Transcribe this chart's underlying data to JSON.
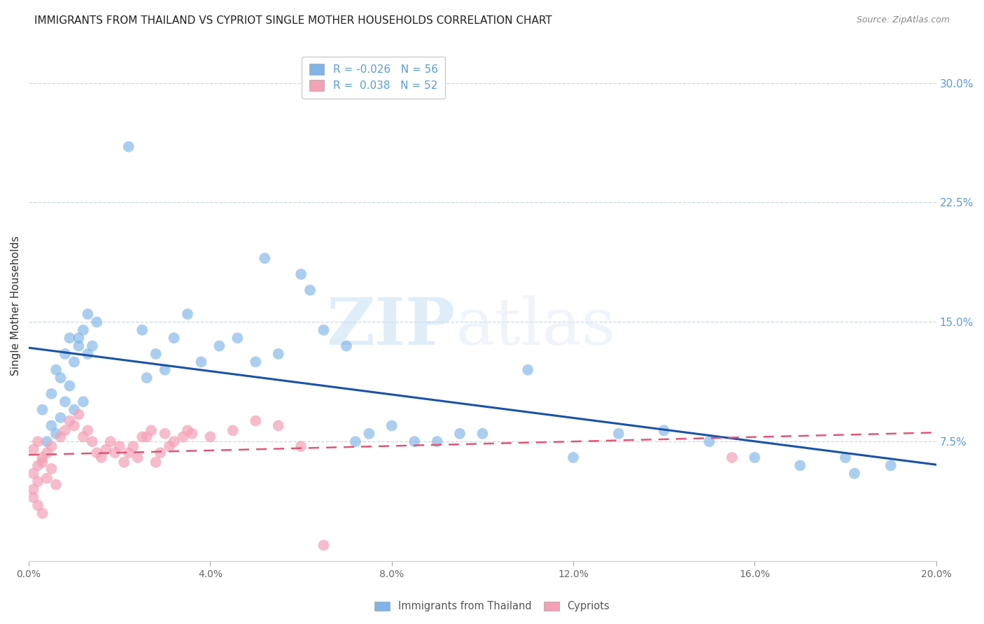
{
  "title": "IMMIGRANTS FROM THAILAND VS CYPRIOT SINGLE MOTHER HOUSEHOLDS CORRELATION CHART",
  "source": "Source: ZipAtlas.com",
  "ylabel": "Single Mother Households",
  "xlim": [
    0.0,
    0.2
  ],
  "ylim": [
    0.0,
    0.32
  ],
  "xtick_vals": [
    0.0,
    0.04,
    0.08,
    0.12,
    0.16,
    0.2
  ],
  "xtick_labels": [
    "0.0%",
    "4.0%",
    "8.0%",
    "12.0%",
    "16.0%",
    "20.0%"
  ],
  "ytick_vals": [
    0.075,
    0.15,
    0.225,
    0.3
  ],
  "ytick_labels": [
    "7.5%",
    "15.0%",
    "22.5%",
    "30.0%"
  ],
  "thailand_color": "#7eb4e8",
  "cypriot_color": "#f4a0b5",
  "trend_thailand_color": "#1a52a8",
  "trend_cypriot_color": "#e05575",
  "legend_R_thailand": "-0.026",
  "legend_N_thailand": "56",
  "legend_R_cypriot": "0.038",
  "legend_N_cypriot": "52",
  "watermark_zip": "ZIP",
  "watermark_atlas": "atlas",
  "grid_color": "#c8d8e8",
  "axis_label_color": "#5b9bd5",
  "title_color": "#222222",
  "source_color": "#888888",
  "ylabel_color": "#333333",
  "thailand_x": [
    0.003,
    0.005,
    0.006,
    0.004,
    0.007,
    0.008,
    0.006,
    0.009,
    0.005,
    0.007,
    0.01,
    0.008,
    0.011,
    0.009,
    0.012,
    0.01,
    0.013,
    0.011,
    0.014,
    0.012,
    0.015,
    0.013,
    0.022,
    0.025,
    0.028,
    0.032,
    0.035,
    0.038,
    0.042,
    0.046,
    0.03,
    0.026,
    0.05,
    0.055,
    0.06,
    0.065,
    0.07,
    0.075,
    0.08,
    0.085,
    0.09,
    0.095,
    0.1,
    0.11,
    0.12,
    0.13,
    0.14,
    0.15,
    0.16,
    0.17,
    0.18,
    0.19,
    0.052,
    0.062,
    0.072,
    0.182
  ],
  "thailand_y": [
    0.095,
    0.085,
    0.08,
    0.075,
    0.09,
    0.1,
    0.12,
    0.11,
    0.105,
    0.115,
    0.125,
    0.13,
    0.135,
    0.14,
    0.1,
    0.095,
    0.13,
    0.14,
    0.135,
    0.145,
    0.15,
    0.155,
    0.26,
    0.145,
    0.13,
    0.14,
    0.155,
    0.125,
    0.135,
    0.14,
    0.12,
    0.115,
    0.125,
    0.13,
    0.18,
    0.145,
    0.135,
    0.08,
    0.085,
    0.075,
    0.075,
    0.08,
    0.08,
    0.12,
    0.065,
    0.08,
    0.082,
    0.075,
    0.065,
    0.06,
    0.065,
    0.06,
    0.19,
    0.17,
    0.075,
    0.055
  ],
  "cypriot_x": [
    0.001,
    0.002,
    0.001,
    0.003,
    0.002,
    0.001,
    0.002,
    0.003,
    0.001,
    0.002,
    0.004,
    0.003,
    0.005,
    0.004,
    0.006,
    0.005,
    0.007,
    0.008,
    0.009,
    0.01,
    0.011,
    0.012,
    0.013,
    0.014,
    0.015,
    0.016,
    0.017,
    0.018,
    0.019,
    0.02,
    0.025,
    0.03,
    0.035,
    0.04,
    0.045,
    0.05,
    0.055,
    0.06,
    0.065,
    0.155,
    0.021,
    0.022,
    0.023,
    0.024,
    0.026,
    0.027,
    0.028,
    0.029,
    0.031,
    0.032,
    0.034,
    0.036
  ],
  "cypriot_y": [
    0.04,
    0.035,
    0.045,
    0.03,
    0.05,
    0.055,
    0.06,
    0.065,
    0.07,
    0.075,
    0.068,
    0.062,
    0.058,
    0.052,
    0.048,
    0.072,
    0.078,
    0.082,
    0.088,
    0.085,
    0.092,
    0.078,
    0.082,
    0.075,
    0.068,
    0.065,
    0.07,
    0.075,
    0.068,
    0.072,
    0.078,
    0.08,
    0.082,
    0.078,
    0.082,
    0.088,
    0.085,
    0.072,
    0.01,
    0.065,
    0.062,
    0.068,
    0.072,
    0.065,
    0.078,
    0.082,
    0.062,
    0.068,
    0.072,
    0.075,
    0.078,
    0.08
  ]
}
